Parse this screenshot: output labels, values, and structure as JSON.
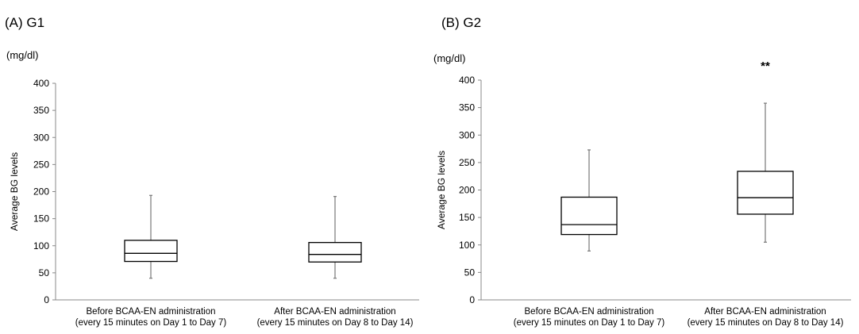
{
  "chart_data": [
    {
      "type": "box",
      "title": "(A) G1",
      "unit": "(mg/dl)",
      "ylabel": "Average BG levels",
      "ylim": [
        0,
        400
      ],
      "yticks": [
        0,
        50,
        100,
        150,
        200,
        250,
        300,
        350,
        400
      ],
      "categories": [
        {
          "line1": "Before BCAA-EN administration",
          "line2": "(every 15 minutes on Day 1 to Day 7)"
        },
        {
          "line1": "After BCAA-EN administration",
          "line2": "(every 15 minutes on Day 8 to Day 14)"
        }
      ],
      "boxes": [
        {
          "min": 40,
          "q1": 71,
          "median": 86,
          "q3": 110,
          "max": 193
        },
        {
          "min": 40,
          "q1": 70,
          "median": 84,
          "q3": 106,
          "max": 191
        }
      ],
      "annotations": [],
      "grid": false
    },
    {
      "type": "box",
      "title": "(B) G2",
      "unit": "(mg/dl)",
      "ylabel": "Average BG levels",
      "ylim": [
        0,
        400
      ],
      "yticks": [
        0,
        50,
        100,
        150,
        200,
        250,
        300,
        350,
        400
      ],
      "categories": [
        {
          "line1": "Before BCAA-EN administration",
          "line2": "(every 15 minutes on Day 1 to Day 7)"
        },
        {
          "line1": "After BCAA-EN administration",
          "line2": "(every 15 minutes on Day 8 to Day 14)"
        }
      ],
      "boxes": [
        {
          "min": 89,
          "q1": 119,
          "median": 137,
          "q3": 187,
          "max": 273
        },
        {
          "min": 105,
          "q1": 156,
          "median": 186,
          "q3": 234,
          "max": 358
        }
      ],
      "annotations": [
        {
          "category": 1,
          "text": "**"
        }
      ],
      "grid": false
    }
  ]
}
